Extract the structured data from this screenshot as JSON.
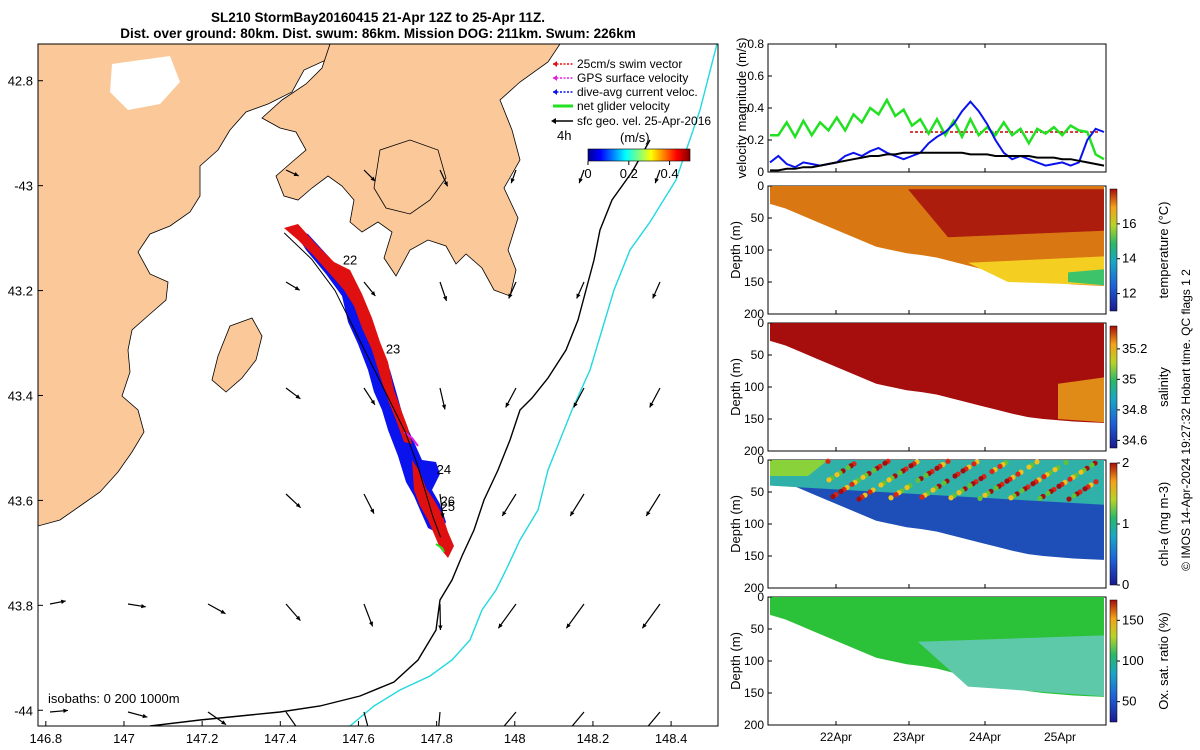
{
  "header": {
    "title_line1": "SL210 StormBay20160415 21-Apr 12Z to 25-Apr 11Z.",
    "title_line2": "Dist. over ground: 80km. Dist. swum: 86km. Mission DOG: 211km. Swum: 226km"
  },
  "colors": {
    "land": "#fbc89a",
    "isobath0": "#000000",
    "isobath200": "#000000",
    "isobath1000": "#22d8e0",
    "swim": "#e01010",
    "gps": "#e020e0",
    "diveavg": "#0a12ee",
    "net": "#22e022",
    "sfcgeo": "#000000",
    "refline": "#c80000"
  },
  "map": {
    "xlim": [
      146.78,
      148.52
    ],
    "ylim": [
      -44.03,
      -42.73
    ],
    "x_ticks": [
      146.8,
      147,
      147.2,
      147.4,
      147.6,
      147.8,
      148,
      148.2,
      148.4
    ],
    "y_ticks": [
      -42.8,
      -43,
      -43.2,
      -43.4,
      -43.6,
      -43.8,
      -44
    ],
    "x_tick_labels": [
      "146.8",
      "147",
      "147.2",
      "147.4",
      "147.6",
      "147.8",
      "148",
      "148.2",
      "148.4"
    ],
    "y_tick_labels": [
      "42.8",
      "-43",
      "43.2",
      "43.4",
      "43.6",
      "43.8",
      "-44"
    ],
    "legend": {
      "items": [
        "25cm/s swim vector",
        "GPS surface velocity",
        "dive-avg current veloc.",
        "net glider velocity",
        "sfc geo. vel. 25-Apr-2016"
      ],
      "speed_label": "(m/s)",
      "arrow_note": "4h",
      "colorbar_ticks": [
        "0",
        "0.2",
        "0.4"
      ],
      "colorbar_range": [
        0,
        0.5
      ]
    },
    "isobath_label": "isobaths: 0   200  1000m",
    "day_labels": [
      {
        "text": "22",
        "lon": 147.56,
        "lat": -43.15
      },
      {
        "text": "23",
        "lon": 147.67,
        "lat": -43.32
      },
      {
        "text": "24",
        "lon": 147.8,
        "lat": -43.55
      },
      {
        "text": "26",
        "lon": 147.81,
        "lat": -43.61
      },
      {
        "text": "25",
        "lon": 147.81,
        "lat": -43.62
      }
    ],
    "track": [
      [
        147.41,
        -43.09
      ],
      [
        147.48,
        -43.14
      ],
      [
        147.54,
        -43.2
      ],
      [
        147.6,
        -43.29
      ],
      [
        147.64,
        -43.35
      ],
      [
        147.68,
        -43.41
      ],
      [
        147.72,
        -43.47
      ],
      [
        147.75,
        -43.53
      ],
      [
        147.77,
        -43.58
      ],
      [
        147.79,
        -43.63
      ],
      [
        147.81,
        -43.67
      ]
    ]
  },
  "velocity_panel": {
    "ylabel": "velocity magnitude (m/s)",
    "ylim": [
      0,
      0.8
    ],
    "y_ticks": [
      "0",
      "0.2",
      "0.4",
      "0.6",
      "0.8"
    ],
    "ref_line_value": 0.25,
    "series": [
      {
        "name": "net glider velocity",
        "values": [
          0.2,
          0.27,
          0.28,
          0.26,
          0.29,
          0.27,
          0.28,
          0.3,
          0.31,
          0.3,
          0.33,
          0.35,
          0.37,
          0.4,
          0.42,
          0.39,
          0.36,
          0.33,
          0.3,
          0.28,
          0.3,
          0.27,
          0.29,
          0.26,
          0.3,
          0.27,
          0.25,
          0.27,
          0.28,
          0.27,
          0.24,
          0.22,
          0.24,
          0.28,
          0.25,
          0.27,
          0.26,
          0.3,
          0.22,
          0.15,
          0.05
        ]
      },
      {
        "name": "dive-avg current veloc.",
        "values": [
          0.06,
          0.1,
          0.05,
          0.03,
          0.06,
          0.05,
          0.04,
          0.05,
          0.06,
          0.1,
          0.12,
          0.1,
          0.13,
          0.15,
          0.12,
          0.1,
          0.08,
          0.1,
          0.12,
          0.18,
          0.22,
          0.25,
          0.3,
          0.38,
          0.44,
          0.38,
          0.3,
          0.2,
          0.12,
          0.08,
          0.1,
          0.08,
          0.06,
          0.04,
          0.05,
          0.06,
          0.04,
          0.06,
          0.2,
          0.27,
          0.25
        ]
      },
      {
        "name": "sfc geo. vel.",
        "values": [
          0.01,
          0.01,
          0.02,
          0.02,
          0.03,
          0.03,
          0.04,
          0.05,
          0.06,
          0.07,
          0.08,
          0.09,
          0.1,
          0.1,
          0.11,
          0.11,
          0.12,
          0.12,
          0.12,
          0.12,
          0.12,
          0.12,
          0.12,
          0.12,
          0.11,
          0.11,
          0.11,
          0.1,
          0.1,
          0.1,
          0.1,
          0.1,
          0.09,
          0.09,
          0.09,
          0.08,
          0.08,
          0.07,
          0.06,
          0.05,
          0.04
        ]
      }
    ]
  },
  "section_panels": [
    {
      "name": "temperature",
      "clabel": "temperature (°C)",
      "cticks": [
        "12",
        "14",
        "16"
      ],
      "crange": [
        11,
        18
      ]
    },
    {
      "name": "salinity",
      "clabel": "salinity",
      "cticks": [
        "34.6",
        "34.8",
        "35",
        "35.2"
      ],
      "crange": [
        34.55,
        35.35
      ]
    },
    {
      "name": "chl-a",
      "clabel": "chl-a (mg m-3)",
      "cticks": [
        "0",
        "1",
        "2"
      ],
      "crange": [
        0,
        2
      ]
    },
    {
      "name": "oxygen",
      "clabel": "Ox. sat. ratio (%)",
      "cticks": [
        "50",
        "100",
        "150"
      ],
      "crange": [
        25,
        175
      ]
    }
  ],
  "sections_common": {
    "ylabel": "Depth (m)",
    "y_ticks": [
      "0",
      "50",
      "100",
      "150",
      "200"
    ],
    "ylim": [
      0,
      200
    ],
    "x_ticks": [
      "22Apr",
      "23Apr",
      "24Apr",
      "25Apr"
    ],
    "seabed_depths": [
      28,
      35,
      45,
      55,
      65,
      75,
      85,
      95,
      100,
      105,
      108,
      112,
      118,
      124,
      130,
      136,
      142,
      147,
      150,
      152,
      154,
      155,
      156
    ]
  },
  "footer_note": "© IMOS 14-Apr-2024 19:27:32 Hobart time. QC flags 1  2"
}
